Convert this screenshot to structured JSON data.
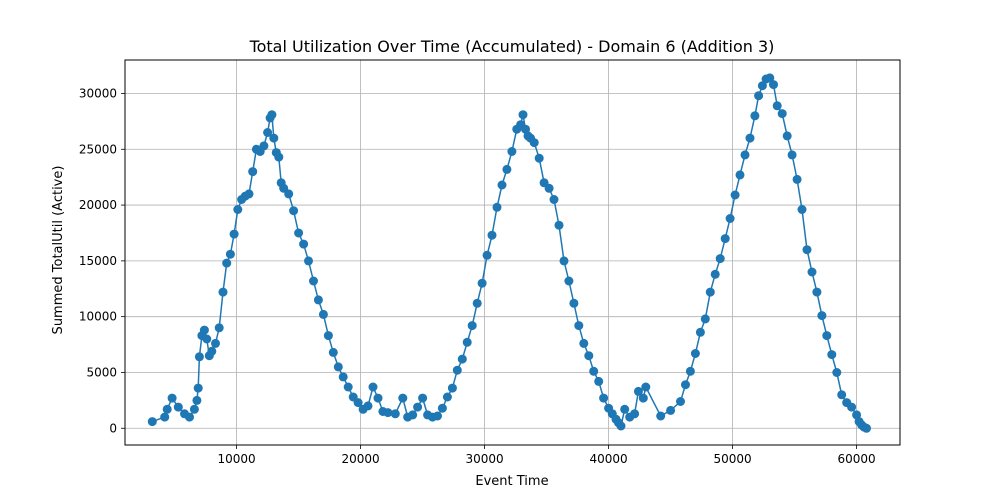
{
  "chart_data": {
    "type": "line",
    "title": "Total Utilization Over Time (Accumulated) - Domain 6 (Addition 3)",
    "xlabel": "Event Time",
    "ylabel": "Summed TotalUtil (Active)",
    "xlim": [
      1000,
      63500
    ],
    "ylim": [
      -1500,
      33000
    ],
    "x_ticks": [
      10000,
      20000,
      30000,
      40000,
      50000,
      60000
    ],
    "x_tick_labels": [
      "10000",
      "20000",
      "30000",
      "40000",
      "50000",
      "60000"
    ],
    "y_ticks": [
      0,
      5000,
      10000,
      15000,
      20000,
      25000,
      30000
    ],
    "y_tick_labels": [
      "0",
      "5000",
      "10000",
      "15000",
      "20000",
      "25000",
      "30000"
    ],
    "grid": true,
    "marker": "circle",
    "color": "#1f77b4",
    "series": [
      {
        "x": [
          3200,
          4200,
          4400,
          4800,
          5300,
          5800,
          6200,
          6600,
          6800,
          6900,
          7000,
          7200,
          7400,
          7600,
          7800,
          8000,
          8300,
          8600,
          8900,
          9200,
          9500,
          9800,
          10100,
          10400,
          10700,
          11000,
          11300,
          11600,
          11900,
          12200,
          12500,
          12700,
          12850,
          13000,
          13200,
          13400,
          13600,
          13800,
          14200,
          14600,
          15000,
          15400,
          15800,
          16200,
          16600,
          17000,
          17400,
          17800,
          18200,
          18600,
          19000,
          19400,
          19800,
          20200,
          20600,
          21000,
          21400,
          21800,
          22200,
          22800,
          23400,
          23800,
          24200,
          24600,
          25000,
          25400,
          25800,
          26200,
          26600,
          27000,
          27400,
          27800,
          28200,
          28600,
          29000,
          29400,
          29800,
          30200,
          30600,
          31000,
          31400,
          31800,
          32200,
          32600,
          32900,
          33100,
          33300,
          33500,
          33700,
          34000,
          34400,
          34800,
          35200,
          35600,
          36000,
          36400,
          36800,
          37200,
          37600,
          38000,
          38400,
          38800,
          39200,
          39600,
          40000,
          40300,
          40600,
          40800,
          41000,
          41300,
          41700,
          42100,
          42400,
          42800,
          43000,
          44200,
          45000,
          45800,
          46200,
          46600,
          47000,
          47400,
          47800,
          48200,
          48600,
          49000,
          49400,
          49800,
          50200,
          50600,
          51000,
          51400,
          51800,
          52100,
          52400,
          52700,
          53000,
          53300,
          53600,
          54000,
          54400,
          54800,
          55200,
          55600,
          56000,
          56400,
          56800,
          57200,
          57600,
          58000,
          58400,
          58800,
          59200,
          59600,
          60000,
          60200,
          60400,
          60600,
          60800
        ],
        "y": [
          600,
          1000,
          1700,
          2700,
          1900,
          1300,
          1000,
          1700,
          2500,
          3600,
          6400,
          8300,
          8800,
          8000,
          6500,
          6900,
          7600,
          9000,
          12200,
          14800,
          15600,
          17400,
          19600,
          20500,
          20800,
          21000,
          23000,
          25000,
          24800,
          25300,
          26500,
          27800,
          28100,
          26000,
          24700,
          24300,
          22000,
          21500,
          21000,
          19500,
          17500,
          16500,
          15000,
          13200,
          11500,
          10200,
          8300,
          6800,
          5500,
          4600,
          3700,
          2800,
          2300,
          1700,
          2000,
          3700,
          2700,
          1500,
          1400,
          1300,
          2700,
          1000,
          1200,
          1900,
          2700,
          1200,
          1000,
          1100,
          1800,
          2800,
          3600,
          5200,
          6200,
          7700,
          9200,
          11200,
          13000,
          15500,
          17300,
          19800,
          21800,
          23200,
          24800,
          26800,
          27200,
          28100,
          26800,
          26200,
          26000,
          25600,
          24200,
          22000,
          21500,
          20500,
          18200,
          15000,
          13200,
          11200,
          9200,
          7600,
          6500,
          5100,
          4200,
          2700,
          1800,
          1300,
          800,
          500,
          200,
          1700,
          1000,
          1300,
          3300,
          2700,
          3700,
          1100,
          1600,
          2400,
          3900,
          5100,
          6700,
          8600,
          9800,
          12200,
          13800,
          15200,
          17000,
          18800,
          20900,
          22700,
          24500,
          26000,
          28000,
          29800,
          30700,
          31300,
          31400,
          30800,
          28900,
          28200,
          26200,
          24500,
          22300,
          19600,
          16000,
          14000,
          12200,
          10100,
          8300,
          6600,
          5000,
          3000,
          2300,
          1900,
          1200,
          600,
          300,
          100,
          0
        ]
      }
    ]
  }
}
